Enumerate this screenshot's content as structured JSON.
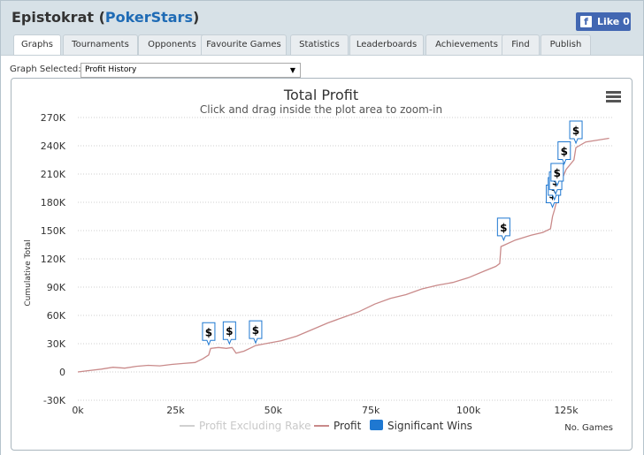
{
  "header": {
    "player": "Epistokrat",
    "site": "PokerStars",
    "like_label": "Like 0"
  },
  "tabs": [
    "Graphs",
    "Tournaments",
    "Opponents",
    "Favourite Games",
    "Statistics",
    "Leaderboards",
    "Achievements",
    "Find",
    "Publish"
  ],
  "active_tab": "Graphs",
  "graph_select": {
    "label": "Graph Selected:",
    "value": "Profit History"
  },
  "colors": {
    "profit_line": "#c98a8a",
    "excl_rake_line": "#d0d0d0",
    "significant": "#1f78d1",
    "title": "#333333"
  },
  "chart_data": {
    "type": "line",
    "title": "Total Profit",
    "subtitle": "Click and drag inside the plot area to zoom-in",
    "xlabel": "No. Games",
    "ylabel": "Cumulative Total",
    "xlim": [
      0,
      137000
    ],
    "ylim": [
      -30000,
      270000
    ],
    "x_ticks": [
      0,
      25000,
      50000,
      75000,
      100000,
      125000
    ],
    "x_tick_labels": [
      "0k",
      "25k",
      "50k",
      "75k",
      "100k",
      "125k"
    ],
    "y_ticks": [
      -30000,
      0,
      30000,
      60000,
      90000,
      120000,
      150000,
      180000,
      210000,
      240000,
      270000
    ],
    "y_tick_labels": [
      "-30K",
      "0",
      "30K",
      "60K",
      "90K",
      "120K",
      "150K",
      "180K",
      "210K",
      "240K",
      "270K"
    ],
    "grid": "horizontal-dotted",
    "legend": {
      "position": "bottom",
      "entries": [
        "Profit Excluding Rake",
        "Profit",
        "Significant Wins"
      ]
    },
    "series": [
      {
        "name": "Profit",
        "points": [
          [
            0,
            0
          ],
          [
            3000,
            1500
          ],
          [
            6000,
            3000
          ],
          [
            9000,
            5000
          ],
          [
            12000,
            4000
          ],
          [
            15000,
            6000
          ],
          [
            18000,
            7000
          ],
          [
            21000,
            6500
          ],
          [
            24000,
            8000
          ],
          [
            27000,
            9000
          ],
          [
            30000,
            10000
          ],
          [
            32000,
            14000
          ],
          [
            33500,
            18000
          ],
          [
            34000,
            25000
          ],
          [
            36000,
            26000
          ],
          [
            38000,
            25000
          ],
          [
            39500,
            26000
          ],
          [
            40500,
            20000
          ],
          [
            42500,
            22000
          ],
          [
            44500,
            26000
          ],
          [
            45500,
            28000
          ],
          [
            48000,
            30000
          ],
          [
            52000,
            33000
          ],
          [
            56000,
            38000
          ],
          [
            60000,
            45000
          ],
          [
            64000,
            52000
          ],
          [
            68000,
            58000
          ],
          [
            72000,
            64000
          ],
          [
            76000,
            72000
          ],
          [
            80000,
            78000
          ],
          [
            84000,
            82000
          ],
          [
            88000,
            88000
          ],
          [
            92000,
            92000
          ],
          [
            96000,
            95000
          ],
          [
            100000,
            100000
          ],
          [
            104000,
            107000
          ],
          [
            107000,
            112000
          ],
          [
            108000,
            115000
          ],
          [
            108300,
            133000
          ],
          [
            112000,
            140000
          ],
          [
            116000,
            145000
          ],
          [
            119000,
            148000
          ],
          [
            121000,
            152000
          ],
          [
            121500,
            165000
          ],
          [
            122000,
            172000
          ],
          [
            122300,
            177000
          ],
          [
            123000,
            185000
          ],
          [
            123500,
            195000
          ],
          [
            124000,
            205000
          ],
          [
            125000,
            215000
          ],
          [
            127000,
            225000
          ],
          [
            127500,
            238000
          ],
          [
            130000,
            244000
          ],
          [
            133000,
            246000
          ],
          [
            136000,
            248000
          ]
        ]
      }
    ],
    "significant_wins": [
      {
        "x": 33500,
        "y": 26000
      },
      {
        "x": 38800,
        "y": 27000
      },
      {
        "x": 45500,
        "y": 28000
      },
      {
        "x": 109000,
        "y": 137000
      },
      {
        "x": 121500,
        "y": 172000
      },
      {
        "x": 122000,
        "y": 180000
      },
      {
        "x": 122300,
        "y": 186000
      },
      {
        "x": 122700,
        "y": 195000
      },
      {
        "x": 124500,
        "y": 218000
      },
      {
        "x": 127500,
        "y": 240000
      }
    ],
    "significant_label": "$"
  }
}
